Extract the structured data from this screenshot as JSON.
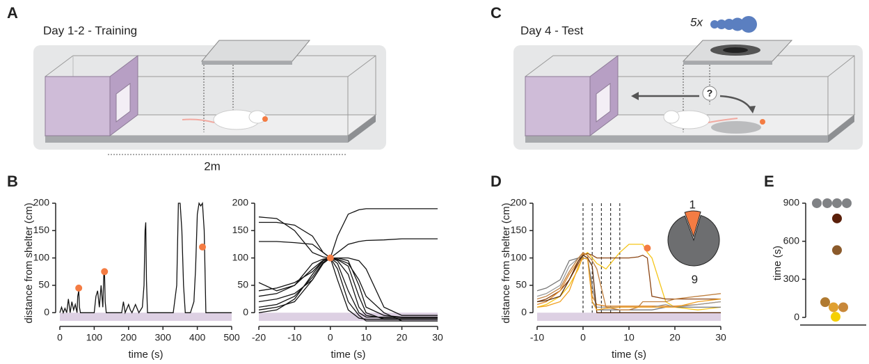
{
  "illustrations": {
    "panel_labels": [
      "A",
      "B",
      "C",
      "D",
      "E"
    ],
    "title_a": "Day 1-2 - Training",
    "distance": "2m",
    "title_c": "Day 4 - Test",
    "stimulus_count": "5x",
    "question": "?"
  },
  "chart_data": [
    {
      "type": "line",
      "xlabel": "time (s)",
      "ylabel": "distance from shelter (cm)",
      "xlim": [
        0,
        500
      ],
      "ylim": [
        -20,
        200
      ],
      "xticks": [
        0,
        100,
        200,
        300,
        400,
        500
      ],
      "yticks": [
        0,
        50,
        100,
        150,
        200
      ],
      "shelter_band": [
        -15,
        0
      ],
      "band_color": "#ddd0e3",
      "x": [
        0,
        5,
        10,
        15,
        20,
        25,
        30,
        35,
        40,
        45,
        50,
        52,
        55,
        57,
        60,
        100,
        105,
        110,
        115,
        120,
        125,
        128,
        130,
        132,
        135,
        180,
        185,
        190,
        200,
        205,
        210,
        220,
        230,
        240,
        245,
        248,
        250,
        252,
        255,
        260,
        300,
        330,
        340,
        345,
        350,
        355,
        360,
        365,
        370,
        380,
        390,
        395,
        400,
        405,
        410,
        415,
        420,
        425,
        430,
        500
      ],
      "series": [
        {
          "color": "#111111",
          "values": [
            0,
            10,
            0,
            8,
            0,
            25,
            0,
            20,
            5,
            15,
            0,
            30,
            40,
            10,
            0,
            0,
            30,
            40,
            10,
            50,
            10,
            70,
            75,
            20,
            0,
            0,
            20,
            0,
            15,
            5,
            0,
            15,
            0,
            10,
            50,
            150,
            165,
            60,
            0,
            0,
            0,
            0,
            50,
            200,
            200,
            150,
            50,
            0,
            0,
            0,
            20,
            80,
            180,
            200,
            195,
            200,
            150,
            0,
            0,
            0
          ]
        }
      ],
      "markers": {
        "x": [
          55,
          130,
          415
        ],
        "values": [
          45,
          75,
          120
        ],
        "color": "#f47c43"
      }
    },
    {
      "type": "line",
      "xlabel": "time (s)",
      "xlim": [
        -20,
        30
      ],
      "ylim": [
        -20,
        200
      ],
      "xticks": [
        -20,
        -10,
        0,
        10,
        20,
        30
      ],
      "yticks": [
        0,
        50,
        100,
        150,
        200
      ],
      "shelter_band": [
        -15,
        0
      ],
      "band_color": "#ddd0e3",
      "x": [
        -20,
        -15,
        -10,
        -5,
        -2,
        0,
        2,
        5,
        8,
        10,
        15,
        20,
        30
      ],
      "series": [
        {
          "color": "#111111",
          "values": [
            5,
            10,
            20,
            60,
            90,
            100,
            140,
            180,
            188,
            190,
            190,
            190,
            190
          ]
        },
        {
          "color": "#111111",
          "values": [
            130,
            130,
            128,
            125,
            110,
            100,
            110,
            125,
            130,
            132,
            133,
            135,
            135
          ]
        },
        {
          "color": "#111111",
          "values": [
            175,
            172,
            150,
            110,
            102,
            100,
            60,
            5,
            -10,
            -12,
            -12,
            -12,
            -12
          ]
        },
        {
          "color": "#111111",
          "values": [
            165,
            165,
            160,
            140,
            110,
            100,
            80,
            20,
            -5,
            -15,
            -15,
            -15,
            -15
          ]
        },
        {
          "color": "#111111",
          "values": [
            55,
            40,
            50,
            90,
            98,
            100,
            95,
            70,
            10,
            -5,
            -10,
            -10,
            -10
          ]
        },
        {
          "color": "#111111",
          "values": [
            20,
            25,
            35,
            60,
            90,
            100,
            100,
            95,
            50,
            10,
            -5,
            -8,
            -8
          ]
        },
        {
          "color": "#111111",
          "values": [
            10,
            15,
            30,
            65,
            92,
            100,
            98,
            90,
            60,
            30,
            0,
            -15,
            -15
          ]
        },
        {
          "color": "#111111",
          "values": [
            40,
            45,
            55,
            75,
            95,
            100,
            97,
            85,
            30,
            0,
            -12,
            -12,
            -12
          ]
        },
        {
          "color": "#111111",
          "values": [
            0,
            5,
            25,
            70,
            95,
            100,
            100,
            100,
            95,
            80,
            10,
            -5,
            -5
          ]
        },
        {
          "color": "#111111",
          "values": [
            30,
            35,
            50,
            80,
            96,
            100,
            90,
            40,
            0,
            -8,
            -8,
            -8,
            -8
          ]
        }
      ],
      "markers": {
        "x": [
          0
        ],
        "values": [
          100
        ],
        "color": "#f47c43"
      }
    },
    {
      "type": "line",
      "xlabel": "time (s)",
      "ylabel": "distance from shelter (cm)",
      "xlim": [
        -10,
        30
      ],
      "ylim": [
        -20,
        200
      ],
      "xticks": [
        -10,
        0,
        10,
        20,
        30
      ],
      "yticks": [
        0,
        50,
        100,
        150,
        200
      ],
      "shelter_band": [
        -15,
        0
      ],
      "band_color": "#ddd0e3",
      "event_lines": [
        0,
        2,
        4,
        6,
        8
      ],
      "x": [
        -10,
        -8,
        -5,
        -3,
        -1,
        0,
        1,
        2,
        3,
        5,
        8,
        10,
        12,
        13,
        14,
        15,
        18,
        20,
        25,
        30
      ],
      "series": [
        {
          "color": "#f5c518",
          "values": [
            10,
            15,
            30,
            50,
            80,
            105,
            110,
            100,
            90,
            80,
            110,
            125,
            125,
            125,
            110,
            100,
            20,
            10,
            5,
            10
          ]
        },
        {
          "color": "#8b4513",
          "values": [
            20,
            25,
            40,
            60,
            90,
            105,
            108,
            105,
            100,
            100,
            100,
            100,
            102,
            105,
            100,
            30,
            25,
            25,
            25,
            25
          ]
        },
        {
          "color": "#e08a2c",
          "values": [
            15,
            20,
            40,
            70,
            95,
            108,
            105,
            30,
            15,
            12,
            12,
            12,
            12,
            12,
            12,
            12,
            12,
            12,
            15,
            20
          ]
        },
        {
          "color": "#999999",
          "values": [
            30,
            35,
            50,
            85,
            100,
            105,
            100,
            20,
            10,
            10,
            10,
            10,
            10,
            10,
            10,
            10,
            15,
            10,
            15,
            20
          ]
        },
        {
          "color": "#777777",
          "values": [
            40,
            45,
            60,
            95,
            100,
            100,
            98,
            50,
            5,
            5,
            5,
            5,
            5,
            5,
            5,
            5,
            10,
            10,
            10,
            10
          ]
        },
        {
          "color": "#5a2d0c",
          "values": [
            20,
            22,
            30,
            60,
            95,
            105,
            100,
            85,
            0,
            0,
            0,
            0,
            0,
            0,
            0,
            0,
            0,
            0,
            0,
            0
          ]
        },
        {
          "color": "#c08040",
          "values": [
            25,
            30,
            45,
            75,
            100,
            110,
            105,
            95,
            80,
            10,
            5,
            5,
            10,
            20,
            20,
            20,
            20,
            25,
            30,
            35
          ]
        },
        {
          "color": "#f0a020",
          "values": [
            10,
            12,
            20,
            40,
            85,
            100,
            98,
            20,
            5,
            8,
            10,
            10,
            10,
            10,
            10,
            10,
            10,
            10,
            20,
            25
          ]
        }
      ],
      "markers": {
        "x": [
          14
        ],
        "values": [
          118
        ],
        "color": "#f47c43"
      },
      "inset_pie": {
        "values": [
          1,
          9
        ],
        "colors": [
          "#f47c43",
          "#6d6e70"
        ]
      }
    },
    {
      "type": "dot",
      "ylabel": "time (s)",
      "ylim": [
        -60,
        960
      ],
      "yticks": [
        0,
        300,
        600,
        900
      ],
      "values": [
        900,
        900,
        900,
        900,
        780,
        530,
        120,
        80,
        80,
        5
      ],
      "colors": [
        "#808285",
        "#808285",
        "#808285",
        "#808285",
        "#5a1f0a",
        "#8b5a2b",
        "#b07a30",
        "#e0a030",
        "#c8883a",
        "#f5d000"
      ]
    }
  ]
}
